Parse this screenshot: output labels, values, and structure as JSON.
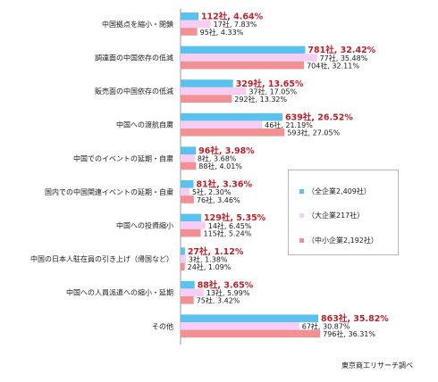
{
  "chart_data": {
    "type": "bar",
    "orientation": "horizontal",
    "categories": [
      "中国拠点を縮小・閉鎖",
      "調達面の中国依存の低減",
      "販売面の中国依存の低減",
      "中国への渡航自粛",
      "中国でのイベントの延期・自粛",
      "国内での中国関連イベントの延期・自粛",
      "中国への投資縮小",
      "中国の日本人駐在員の引き上げ（帰国など）",
      "中国への人員派遣への縮小・延期",
      "その他"
    ],
    "series": [
      {
        "name": "全企業2,409社",
        "color": "#5bc2ef",
        "counts": [
          112,
          781,
          329,
          639,
          96,
          81,
          129,
          27,
          88,
          863
        ],
        "values": [
          4.64,
          32.42,
          13.65,
          26.52,
          3.98,
          3.36,
          5.35,
          1.12,
          3.65,
          35.82
        ],
        "labels": [
          "112社, 4.64%",
          "781社, 32.42%",
          "329社, 13.65%",
          "639社, 26.52%",
          "96社, 3.98%",
          "81社, 3.36%",
          "129社, 5.35%",
          "27社, 1.12%",
          "88社, 3.65%",
          "863社, 35.82%"
        ]
      },
      {
        "name": "大企業217社",
        "color": "#f7cdf5",
        "counts": [
          17,
          77,
          37,
          46,
          8,
          5,
          14,
          3,
          13,
          67
        ],
        "values": [
          7.83,
          35.48,
          17.05,
          21.19,
          3.68,
          2.3,
          6.45,
          1.38,
          5.99,
          30.87
        ],
        "labels": [
          "17社, 7.83%",
          "77社, 35.48%",
          "37社, 17.05%",
          "46社, 21.19%",
          "8社, 3.68%",
          "5社, 2.30%",
          "14社, 6.45%",
          "3社, 1.38%",
          "13社, 5.99%",
          "67社, 30.87%"
        ]
      },
      {
        "name": "中小企業2,192社",
        "color": "#f29194",
        "counts": [
          95,
          704,
          292,
          593,
          88,
          76,
          115,
          24,
          75,
          796
        ],
        "values": [
          4.33,
          32.11,
          13.32,
          27.05,
          4.01,
          3.46,
          5.24,
          1.09,
          3.42,
          36.31
        ],
        "labels": [
          "95社, 4.33%",
          "704社, 32.11%",
          "292社, 13.32%",
          "593社, 27.05%",
          "88社, 4.01%",
          "76社, 3.46%",
          "115社, 5.24%",
          "24社, 1.09%",
          "75社, 3.42%",
          "796社, 36.31%"
        ]
      }
    ],
    "legend": {
      "position": "right",
      "items": [
        "（全企業2,409社）",
        "（大企業217社）",
        "（中小企業2,192社）"
      ]
    },
    "grid": false,
    "source": "東京商工リサーチ調べ"
  }
}
